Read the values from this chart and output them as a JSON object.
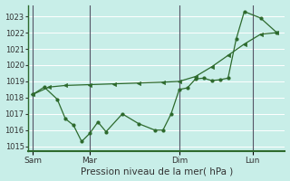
{
  "background_color": "#c8eee8",
  "grid_color": "#ffffff",
  "line_color": "#2d6a2d",
  "xlabel": "Pression niveau de la mer( hPa )",
  "ylim": [
    1014.7,
    1023.7
  ],
  "yticks": [
    1015,
    1016,
    1017,
    1018,
    1019,
    1020,
    1021,
    1022,
    1023
  ],
  "xtick_labels": [
    "Sam",
    "Mar",
    "Dim",
    "Lun"
  ],
  "vline_x": [
    0.0,
    3.5,
    9.0,
    13.5
  ],
  "smooth_x": [
    0.0,
    1.0,
    2.0,
    3.5,
    5.0,
    6.5,
    8.0,
    9.0,
    10.0,
    11.0,
    12.0,
    13.0,
    14.0,
    15.0
  ],
  "smooth_y": [
    1018.2,
    1018.65,
    1018.75,
    1018.8,
    1018.85,
    1018.9,
    1018.95,
    1019.0,
    1019.3,
    1019.9,
    1020.6,
    1021.3,
    1021.9,
    1022.0
  ],
  "jagged_x": [
    0.0,
    0.7,
    1.5,
    2.0,
    2.5,
    3.0,
    3.5,
    4.0,
    4.5,
    5.5,
    6.5,
    7.5,
    8.0,
    8.5,
    9.0,
    9.5,
    10.0,
    10.5,
    11.0,
    11.5,
    12.0,
    12.5,
    13.0,
    14.0,
    15.0
  ],
  "jagged_y": [
    1018.2,
    1018.65,
    1017.9,
    1016.7,
    1016.3,
    1015.3,
    1015.8,
    1016.5,
    1015.9,
    1017.0,
    1016.4,
    1016.0,
    1016.0,
    1017.0,
    1018.5,
    1018.6,
    1019.15,
    1019.2,
    1019.05,
    1019.1,
    1019.2,
    1021.6,
    1023.3,
    1022.9,
    1022.0
  ],
  "xlim": [
    -0.3,
    15.5
  ],
  "vline_color": "#555566",
  "vline_lw": 0.8,
  "spine_color": "#2d6a2d",
  "tick_fontsize": 6,
  "xlabel_fontsize": 7.5
}
